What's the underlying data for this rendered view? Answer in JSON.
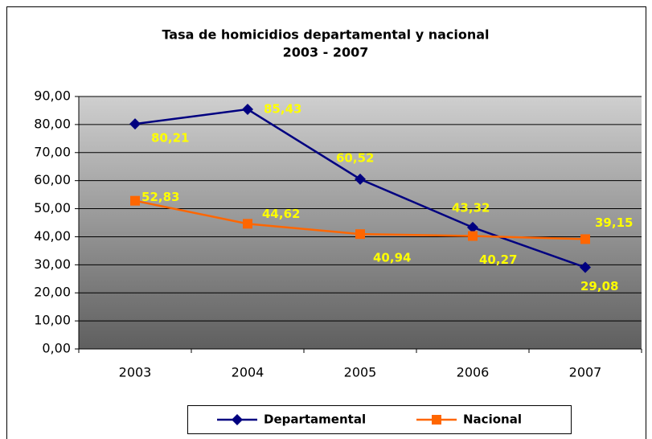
{
  "chart_data": {
    "type": "line",
    "title": "Tasa de homicidios departamental y nacional",
    "subtitle": "2003 - 2007",
    "categories": [
      "2003",
      "2004",
      "2005",
      "2006",
      "2007"
    ],
    "series": [
      {
        "name": "Departamental",
        "color": "#000080",
        "marker": "diamond",
        "values": [
          80.21,
          85.43,
          60.52,
          43.32,
          29.08
        ],
        "value_labels": [
          "80,21",
          "85,43",
          "60,52",
          "43,32",
          "29,08"
        ]
      },
      {
        "name": "Nacional",
        "color": "#ff6600",
        "marker": "square",
        "values": [
          52.83,
          44.62,
          40.94,
          40.27,
          39.15
        ],
        "value_labels": [
          "52,83",
          "44,62",
          "40,94",
          "40,27",
          "39,15"
        ]
      }
    ],
    "ylim": [
      0,
      90
    ],
    "yticks": [
      {
        "value": 0,
        "label": "0,00"
      },
      {
        "value": 10,
        "label": "10,00"
      },
      {
        "value": 20,
        "label": "20,00"
      },
      {
        "value": 30,
        "label": "30,00"
      },
      {
        "value": 40,
        "label": "40,00"
      },
      {
        "value": 50,
        "label": "50,00"
      },
      {
        "value": 60,
        "label": "60,00"
      },
      {
        "value": 70,
        "label": "70,00"
      },
      {
        "value": 80,
        "label": "80,00"
      },
      {
        "value": 90,
        "label": "90,00"
      }
    ],
    "grid": true,
    "legend": "bottom"
  }
}
